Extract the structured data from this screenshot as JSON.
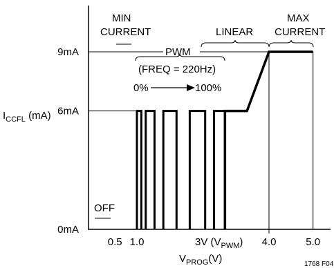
{
  "chart_data": {
    "type": "line",
    "ylabel_main": "I",
    "ylabel_sub": "CCFL",
    "ylabel_unit": " (mA)",
    "xlabel_main": "V",
    "xlabel_sub": "PROG",
    "xlabel_unit": "(V)",
    "y_ticks": [
      {
        "value": 0,
        "label": "0mA"
      },
      {
        "value": 6,
        "label": "6mA"
      },
      {
        "value": 9,
        "label": "9mA"
      }
    ],
    "x_ticks": [
      {
        "value": 0.5,
        "label": "0.5"
      },
      {
        "value": 1.0,
        "label": "1.0"
      },
      {
        "value": 4.0,
        "label": "4.0"
      },
      {
        "value": 5.0,
        "label": "5.0"
      }
    ],
    "x_tick_3v": {
      "value": 3.0,
      "label_pre": "3V (V",
      "label_sub": "PWM",
      "label_post": ")"
    },
    "regions": {
      "off": "OFF",
      "min_current_1": "MIN",
      "min_current_2": "CURRENT",
      "linear": "LINEAR",
      "max_current_1": "MAX",
      "max_current_2": "CURRENT"
    },
    "pwm_label": "PWM",
    "freq_label": "(FREQ = 220Hz)",
    "duty_start": "0%",
    "duty_end": "100%",
    "pwm_pulses": [
      {
        "x0": 1.0,
        "x1": 1.1
      },
      {
        "x0": 1.2,
        "x1": 1.4
      },
      {
        "x0": 1.6,
        "x1": 1.9
      },
      {
        "x0": 2.2,
        "x1": 2.55
      },
      {
        "x0": 2.75,
        "x1": 3.0
      }
    ],
    "linear_segment": [
      [
        3.0,
        6
      ],
      [
        3.5,
        6
      ],
      [
        4.0,
        9
      ],
      [
        5.0,
        9
      ]
    ],
    "figure_id": "1768 F04"
  }
}
